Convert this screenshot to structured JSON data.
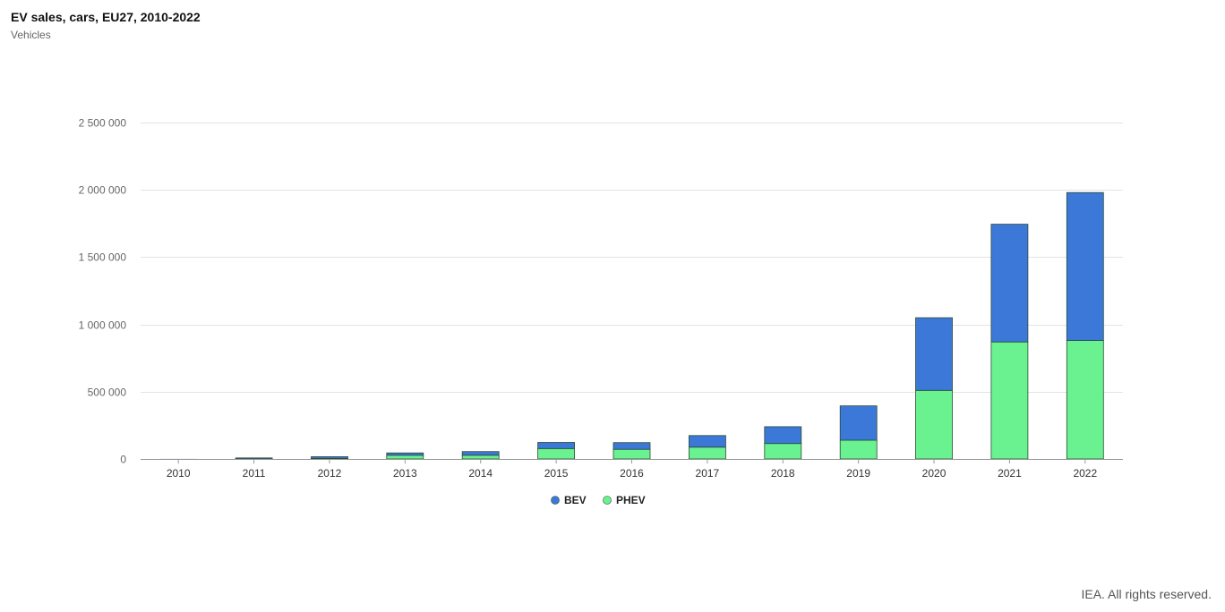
{
  "header": {
    "title": "EV sales, cars, EU27, 2010-2022",
    "subtitle": "Vehicles"
  },
  "footer": {
    "credit": "IEA. All rights reserved."
  },
  "chart_data": {
    "type": "bar",
    "stacked": true,
    "title": "EV sales, cars, EU27, 2010-2022",
    "ylabel": "Vehicles",
    "xlabel": "",
    "categories": [
      "2010",
      "2011",
      "2012",
      "2013",
      "2014",
      "2015",
      "2016",
      "2017",
      "2018",
      "2019",
      "2020",
      "2021",
      "2022"
    ],
    "ylim": [
      0,
      2500000
    ],
    "yticks": [
      0,
      500000,
      1000000,
      1500000,
      2000000,
      2500000
    ],
    "ytick_labels": [
      "0",
      "500 000",
      "1 000 000",
      "1 500 000",
      "2 000 000",
      "2 500 000"
    ],
    "grid": true,
    "legend_position": "bottom-center",
    "series": [
      {
        "name": "PHEV",
        "color": "#69f28f",
        "values": [
          0,
          1000,
          4000,
          28000,
          28000,
          78000,
          72000,
          88000,
          115000,
          140000,
          510000,
          870000,
          880000
        ]
      },
      {
        "name": "BEV",
        "color": "#3c78d8",
        "values": [
          600,
          7000,
          13000,
          17000,
          27000,
          45000,
          50000,
          86000,
          125000,
          255000,
          540000,
          875000,
          1100000
        ]
      }
    ]
  }
}
